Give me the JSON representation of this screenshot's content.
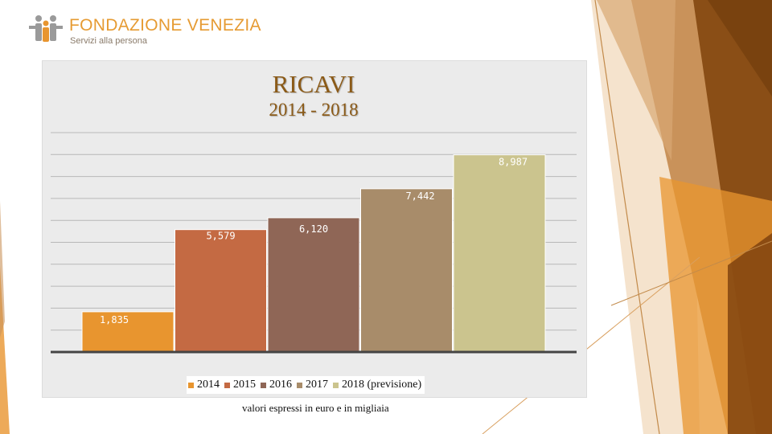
{
  "logo": {
    "name": "FONDAZIONE VENEZIA",
    "tagline": "Servizi alla persona"
  },
  "colors": {
    "accent": "#e8952f",
    "title": "#8b5a17"
  },
  "chart_data": {
    "type": "bar",
    "title": "RICAVI",
    "subtitle": "2014 - 2018",
    "categories": [
      "2014",
      "2015",
      "2016",
      "2017",
      "2018 (previsione)"
    ],
    "values": [
      1835,
      5579,
      6120,
      7442,
      8987
    ],
    "value_labels": [
      "1,835",
      "5,579",
      "6,120",
      "7,442",
      "8,987"
    ],
    "colors": [
      "#e8952f",
      "#c46a43",
      "#8f6656",
      "#a88c6a",
      "#cbc48e"
    ],
    "ylim": [
      0,
      10000
    ],
    "grid": true,
    "legend_position": "bottom",
    "xlabel": "",
    "ylabel": ""
  },
  "footnote": "valori espressi in euro e in migliaia"
}
